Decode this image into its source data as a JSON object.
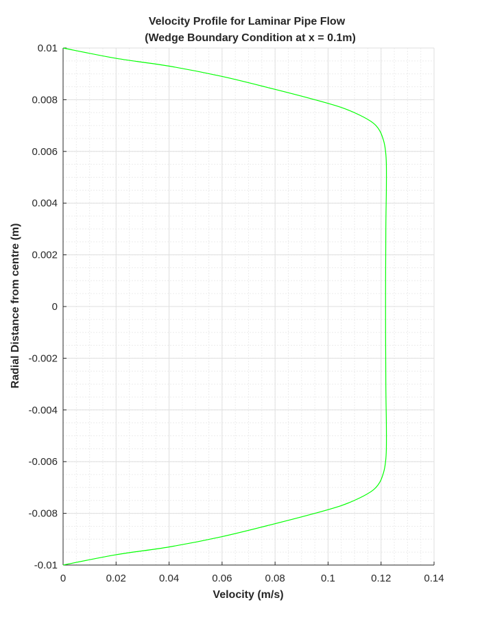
{
  "chart_data": {
    "type": "line",
    "title": "Velocity Profile for Laminar Pipe Flow",
    "subtitle": "(Wedge Boundary Condition at x = 0.1m)",
    "xlabel": "Velocity (m/s)",
    "ylabel": "Radial Distance from centre (m)",
    "xlim": [
      0,
      0.14
    ],
    "ylim": [
      -0.01,
      0.01
    ],
    "xticks": [
      0,
      0.02,
      0.04,
      0.06,
      0.08,
      0.1,
      0.12,
      0.14
    ],
    "xtick_labels": [
      "0",
      "0.02",
      "0.04",
      "0.06",
      "0.08",
      "0.1",
      "0.12",
      "0.14"
    ],
    "yticks": [
      0.01,
      0.008,
      0.006,
      0.004,
      0.002,
      0,
      -0.002,
      -0.004,
      -0.006,
      -0.008,
      -0.01
    ],
    "ytick_labels": [
      "0.01",
      "0.008",
      "0.006",
      "0.004",
      "0.002",
      "0",
      "-0.002",
      "-0.004",
      "-0.006",
      "-0.008",
      "-0.01"
    ],
    "grid": true,
    "minor_grid": true,
    "series": [
      {
        "color": "#00ff00",
        "x": [
          0,
          0.02,
          0.04,
          0.06,
          0.08,
          0.095,
          0.105,
          0.112,
          0.117,
          0.1195,
          0.121,
          0.1217,
          0.122,
          0.122,
          0.1218,
          0.1217,
          0.1218,
          0.122,
          0.122,
          0.1217,
          0.121,
          0.1195,
          0.117,
          0.112,
          0.105,
          0.095,
          0.08,
          0.06,
          0.04,
          0.02,
          0
        ],
        "y": [
          0.01,
          0.0096,
          0.0093,
          0.0089,
          0.0084,
          0.008,
          0.0077,
          0.0074,
          0.0071,
          0.0068,
          0.0064,
          0.006,
          0.0055,
          0.0045,
          0.003,
          0.0,
          -0.003,
          -0.0045,
          -0.0055,
          -0.006,
          -0.0064,
          -0.0068,
          -0.0071,
          -0.0074,
          -0.0077,
          -0.008,
          -0.0084,
          -0.0089,
          -0.0093,
          -0.0096,
          -0.01
        ]
      }
    ]
  }
}
